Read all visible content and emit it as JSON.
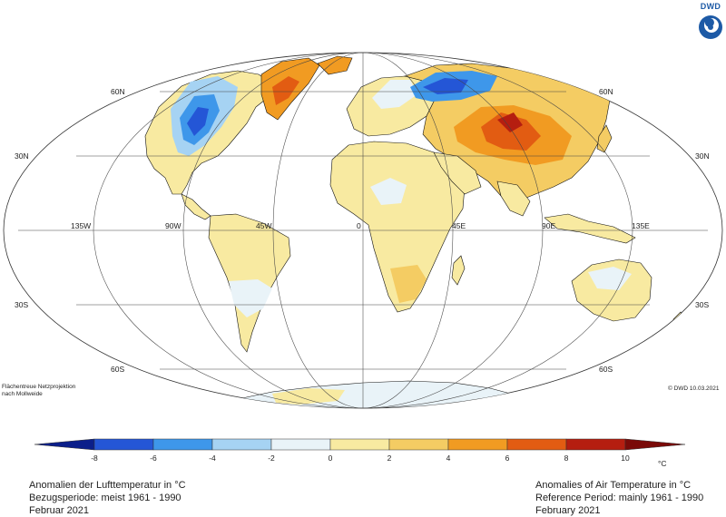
{
  "logo": {
    "text": "DWD"
  },
  "projection_note": [
    "Flächentreue Netzprojektion",
    "nach Mollweide"
  ],
  "copyright": "© DWD 10.03.2021",
  "lat_labels": {
    "n60": "60N",
    "n30": "30N",
    "s30": "30S",
    "s60": "60S"
  },
  "lon_labels": {
    "w135": "135W",
    "w90": "90W",
    "w45": "45W",
    "zero": "0",
    "e45": "45E",
    "e90": "90E",
    "e135": "135E"
  },
  "legend": {
    "unit": "°C",
    "ticks": [
      "-8",
      "-6",
      "-4",
      "-2",
      "0",
      "2",
      "4",
      "6",
      "8",
      "10"
    ],
    "colors": [
      "#0b1f8a",
      "#2456d6",
      "#3e97ea",
      "#a6d3f3",
      "#e9f3f8",
      "#f8eaa1",
      "#f4cc63",
      "#f19b22",
      "#e25c12",
      "#b51e10",
      "#7a0a08"
    ]
  },
  "caption_de": {
    "title": "Anomalien der Lufttemperatur in °C",
    "period": "Bezugsperiode: meist 1961 - 1990",
    "date": "Februar 2021"
  },
  "caption_en": {
    "title": "Anomalies of Air Temperature in °C",
    "period": "Reference Period: mainly 1961 - 1990",
    "date": "February 2021"
  }
}
